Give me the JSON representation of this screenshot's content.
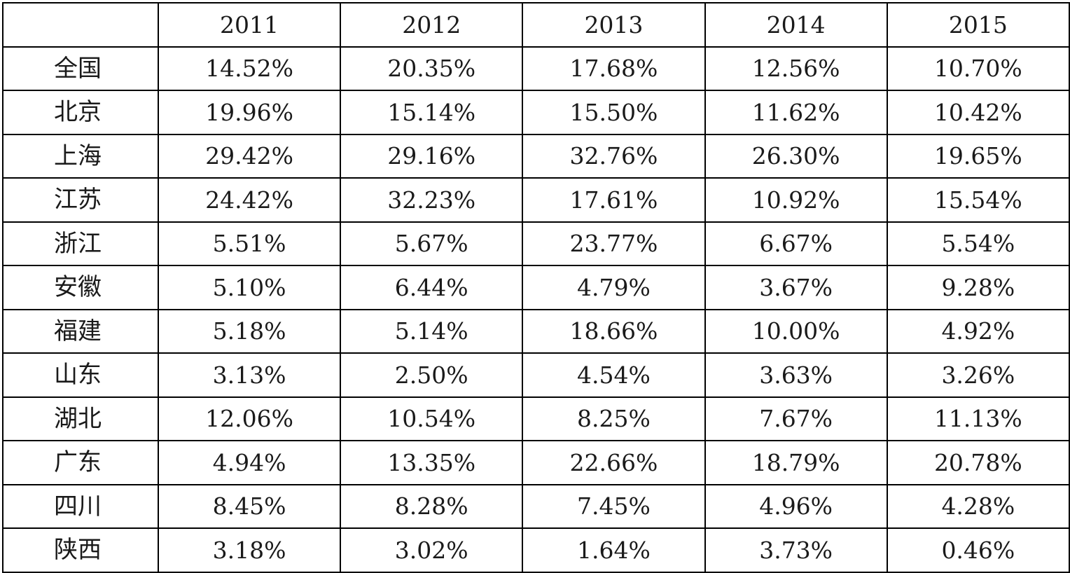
{
  "table": {
    "corner": "",
    "columns": [
      "2011",
      "2012",
      "2013",
      "2014",
      "2015"
    ],
    "rows": [
      {
        "label": "全国",
        "values": [
          "14.52%",
          "20.35%",
          "17.68%",
          "12.56%",
          "10.70%"
        ]
      },
      {
        "label": "北京",
        "values": [
          "19.96%",
          "15.14%",
          "15.50%",
          "11.62%",
          "10.42%"
        ]
      },
      {
        "label": "上海",
        "values": [
          "29.42%",
          "29.16%",
          "32.76%",
          "26.30%",
          "19.65%"
        ]
      },
      {
        "label": "江苏",
        "values": [
          "24.42%",
          "32.23%",
          "17.61%",
          "10.92%",
          "15.54%"
        ]
      },
      {
        "label": "浙江",
        "values": [
          "5.51%",
          "5.67%",
          "23.77%",
          "6.67%",
          "5.54%"
        ]
      },
      {
        "label": "安徽",
        "values": [
          "5.10%",
          "6.44%",
          "4.79%",
          "3.67%",
          "9.28%"
        ]
      },
      {
        "label": "福建",
        "values": [
          "5.18%",
          "5.14%",
          "18.66%",
          "10.00%",
          "4.92%"
        ]
      },
      {
        "label": "山东",
        "values": [
          "3.13%",
          "2.50%",
          "4.54%",
          "3.63%",
          "3.26%"
        ]
      },
      {
        "label": "湖北",
        "values": [
          "12.06%",
          "10.54%",
          "8.25%",
          "7.67%",
          "11.13%"
        ]
      },
      {
        "label": "广东",
        "values": [
          "4.94%",
          "13.35%",
          "22.66%",
          "18.79%",
          "20.78%"
        ]
      },
      {
        "label": "四川",
        "values": [
          "8.45%",
          "8.28%",
          "7.45%",
          "4.96%",
          "4.28%"
        ]
      },
      {
        "label": "陕西",
        "values": [
          "3.18%",
          "3.02%",
          "1.64%",
          "3.73%",
          "0.46%"
        ]
      }
    ]
  },
  "colors": {
    "border": "#000000",
    "text": "#1a1a1a",
    "background": "#ffffff"
  }
}
